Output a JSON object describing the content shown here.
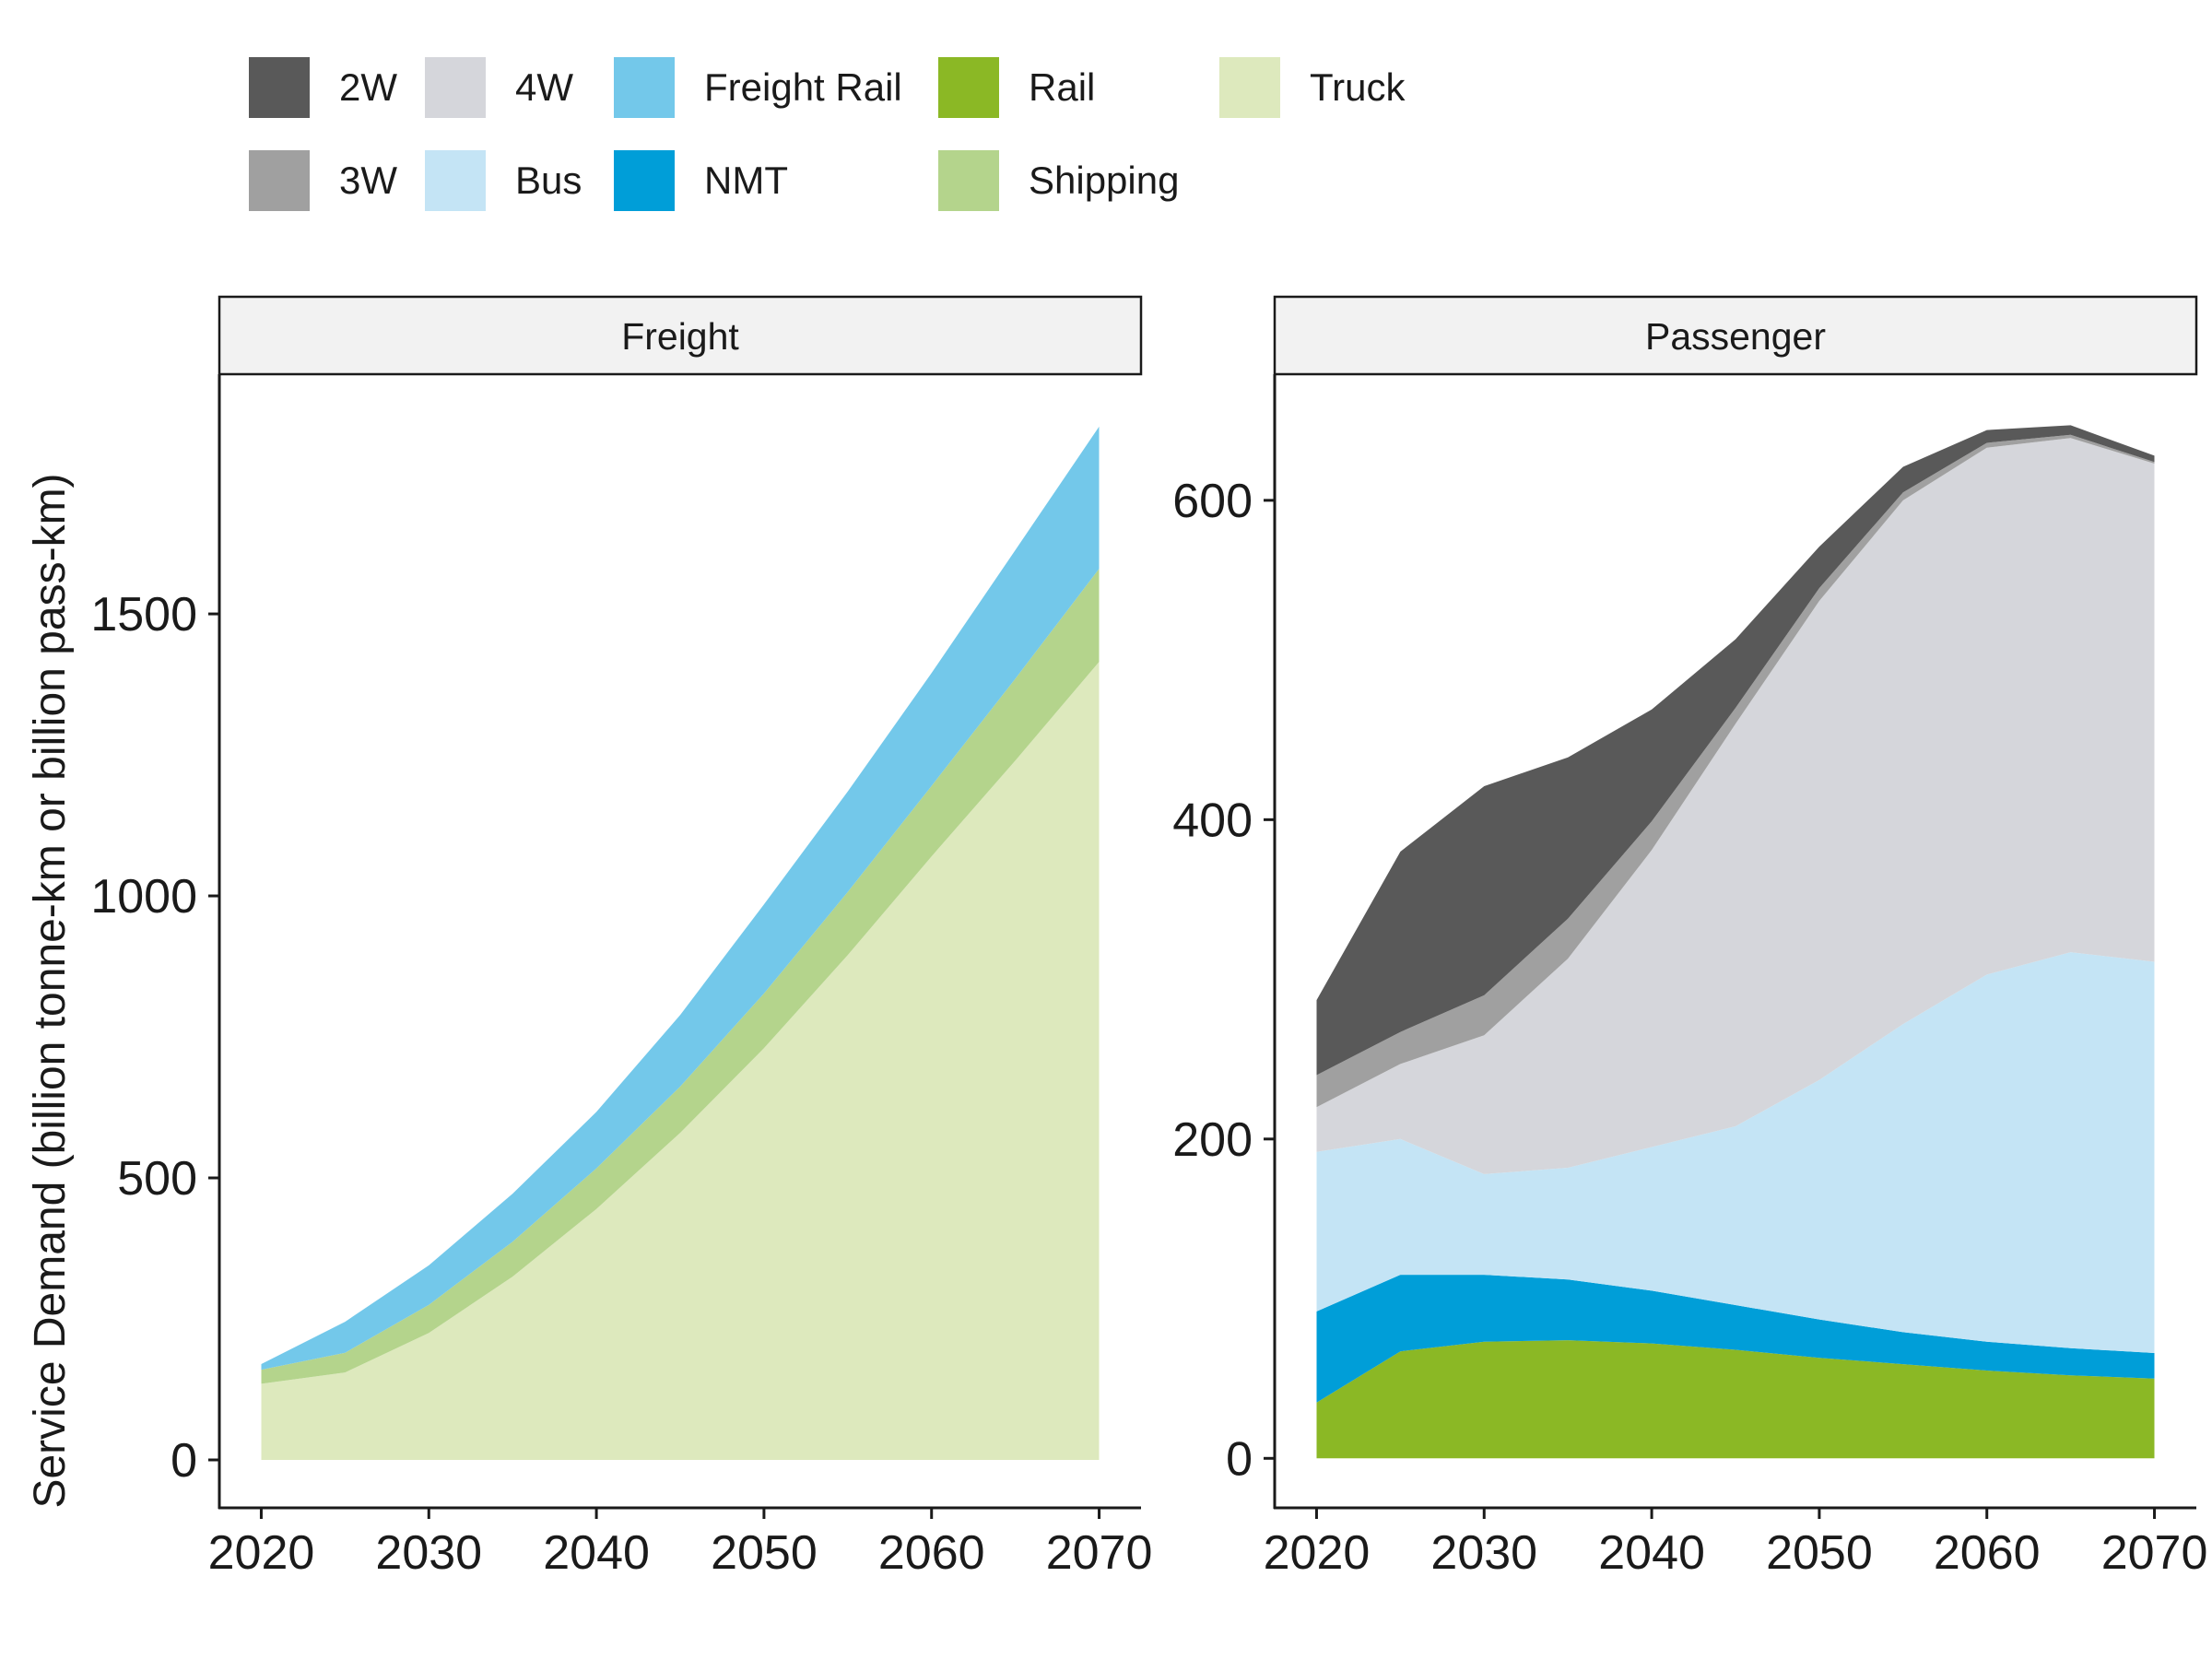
{
  "chart_data": {
    "type": "area",
    "stacked": true,
    "ylabel": "Service Demand (billion tonne-km or billion pass-km)",
    "legend": {
      "placement": "top",
      "entries": [
        {
          "key": "2W",
          "label": "2W",
          "color": "#595959"
        },
        {
          "key": "3W",
          "label": "3W",
          "color": "#a0a0a0"
        },
        {
          "key": "4W",
          "label": "4W",
          "color": "#d5d6db"
        },
        {
          "key": "Bus",
          "label": "Bus",
          "color": "#c4e4f5"
        },
        {
          "key": "FreightRail",
          "label": "Freight Rail",
          "color": "#73c8ea"
        },
        {
          "key": "NMT",
          "label": "NMT",
          "color": "#009ed8"
        },
        {
          "key": "Rail",
          "label": "Rail",
          "color": "#8bb825"
        },
        {
          "key": "Shipping",
          "label": "Shipping",
          "color": "#b4d48c"
        },
        {
          "key": "Truck",
          "label": "Truck",
          "color": "#dde9bd"
        }
      ]
    },
    "panels": [
      {
        "strip": "Freight",
        "x": [
          2020,
          2025,
          2030,
          2035,
          2040,
          2045,
          2050,
          2055,
          2060,
          2065,
          2070
        ],
        "xticks": [
          2020,
          2030,
          2040,
          2050,
          2060,
          2070
        ],
        "xlim": [
          2017.5,
          2072.5
        ],
        "yticks": [
          0,
          500,
          1000,
          1500
        ],
        "ylim": [
          -85,
          1925
        ],
        "series": [
          {
            "key": "Truck",
            "name": "Truck",
            "values": [
              135,
              155,
              225,
              325,
              445,
              580,
              730,
              895,
              1070,
              1240,
              1415
            ]
          },
          {
            "key": "Shipping",
            "name": "Shipping",
            "values": [
              25,
              35,
              50,
              62,
              72,
              82,
              97,
              112,
              125,
              145,
              165
            ]
          },
          {
            "key": "FreightRail",
            "name": "Freight Rail",
            "values": [
              10,
              55,
              70,
              85,
              100,
              127,
              158,
              178,
              200,
              228,
              252
            ]
          }
        ]
      },
      {
        "strip": "Passenger",
        "x": [
          2020,
          2025,
          2030,
          2035,
          2040,
          2045,
          2050,
          2055,
          2060,
          2065,
          2070
        ],
        "xticks": [
          2020,
          2030,
          2040,
          2050,
          2060,
          2070
        ],
        "xlim": [
          2017.5,
          2072.5
        ],
        "yticks": [
          0,
          200,
          400,
          600
        ],
        "ylim": [
          -31,
          679
        ],
        "series": [
          {
            "key": "Rail",
            "name": "Rail",
            "values": [
              35,
              67,
              73,
              74,
              72,
              68,
              63,
              59,
              55,
              52,
              50
            ]
          },
          {
            "key": "NMT",
            "name": "NMT",
            "values": [
              57,
              48,
              42,
              38,
              33,
              28,
              24,
              20,
              18,
              17,
              16
            ]
          },
          {
            "key": "Bus",
            "name": "Bus",
            "values": [
              100,
              85,
              63,
              70,
              90,
              112,
              150,
              193,
              230,
              248,
              245
            ]
          },
          {
            "key": "4W",
            "name": "4W",
            "values": [
              28,
              47,
              87,
              131,
              186,
              252,
              300,
              328,
              330,
              322,
              312
            ]
          },
          {
            "key": "3W",
            "name": "3W",
            "values": [
              20,
              20,
              25,
              25,
              18,
              10,
              8,
              5,
              3,
              2,
              1
            ]
          },
          {
            "key": "2W",
            "name": "2W",
            "values": [
              47,
              113,
              131,
              101,
              70,
              43,
              26,
              16,
              8,
              6,
              4
            ]
          }
        ]
      }
    ]
  }
}
